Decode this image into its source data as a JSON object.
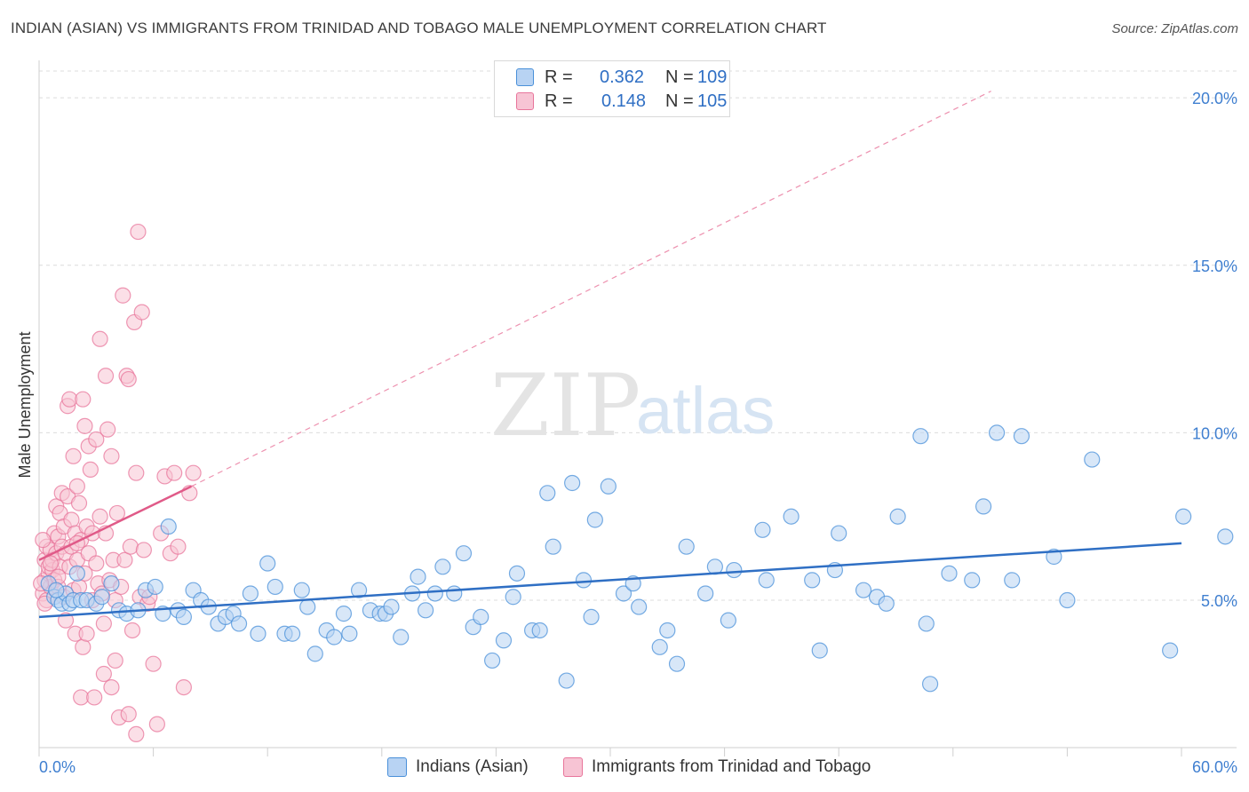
{
  "title": "INDIAN (ASIAN) VS IMMIGRANTS FROM TRINIDAD AND TOBAGO MALE UNEMPLOYMENT CORRELATION CHART",
  "source": "Source: ZipAtlas.com",
  "watermark": {
    "zip": "ZIP",
    "atlas": "atlas"
  },
  "stats": [
    {
      "r_label": "R =",
      "r_value": "0.362",
      "n_label": "N =",
      "n_value": "109",
      "color": "#4a90d9",
      "fill": "#b8d3f3"
    },
    {
      "r_label": "R =",
      "r_value": "0.148",
      "n_label": "N =",
      "n_value": "105",
      "color": "#e8759b",
      "fill": "#f7c4d4"
    }
  ],
  "chart_data": {
    "type": "scatter",
    "xlabel": "",
    "ylabel": "Male Unemployment",
    "xlim": [
      0,
      60
    ],
    "ylim": [
      0.6,
      20.8
    ],
    "x_tick_labels": [
      "0.0%",
      "60.0%"
    ],
    "y_ticks": [
      5,
      10,
      15,
      20
    ],
    "y_tick_labels": [
      "5.0%",
      "10.0%",
      "15.0%",
      "20.0%"
    ],
    "grid": true,
    "legend_position": "bottom",
    "series": [
      {
        "name": "Indians (Asian)",
        "color": "#4a90d9",
        "fill": "#b8d3f3",
        "trend": {
          "x0": 0,
          "y0": 4.5,
          "x1": 60,
          "y1": 6.7
        },
        "points": [
          [
            0.5,
            5.5
          ],
          [
            0.8,
            5.1
          ],
          [
            1.0,
            5.0
          ],
          [
            1.2,
            4.9
          ],
          [
            1.4,
            5.2
          ],
          [
            1.6,
            4.9
          ],
          [
            1.8,
            5.0
          ],
          [
            2.0,
            5.8
          ],
          [
            2.2,
            5.0
          ],
          [
            2.5,
            5.0
          ],
          [
            3.0,
            4.9
          ],
          [
            3.3,
            5.1
          ],
          [
            3.8,
            5.5
          ],
          [
            4.2,
            4.7
          ],
          [
            4.6,
            4.6
          ],
          [
            5.2,
            4.7
          ],
          [
            5.6,
            5.3
          ],
          [
            6.1,
            5.4
          ],
          [
            6.5,
            4.6
          ],
          [
            6.8,
            7.2
          ],
          [
            7.3,
            4.7
          ],
          [
            7.6,
            4.5
          ],
          [
            8.1,
            5.3
          ],
          [
            8.5,
            5.0
          ],
          [
            8.9,
            4.8
          ],
          [
            9.4,
            4.3
          ],
          [
            9.8,
            4.5
          ],
          [
            10.2,
            4.6
          ],
          [
            10.5,
            4.3
          ],
          [
            11.1,
            5.2
          ],
          [
            11.5,
            4.0
          ],
          [
            12.0,
            6.1
          ],
          [
            12.4,
            5.4
          ],
          [
            12.9,
            4.0
          ],
          [
            13.3,
            4.0
          ],
          [
            13.8,
            5.3
          ],
          [
            14.1,
            4.8
          ],
          [
            14.5,
            3.4
          ],
          [
            15.1,
            4.1
          ],
          [
            15.5,
            3.9
          ],
          [
            16.0,
            4.6
          ],
          [
            16.3,
            4.0
          ],
          [
            16.8,
            5.3
          ],
          [
            17.4,
            4.7
          ],
          [
            17.9,
            4.6
          ],
          [
            18.2,
            4.6
          ],
          [
            18.5,
            4.8
          ],
          [
            19.0,
            3.9
          ],
          [
            19.6,
            5.2
          ],
          [
            19.9,
            5.7
          ],
          [
            20.3,
            4.7
          ],
          [
            20.8,
            5.2
          ],
          [
            21.2,
            6.0
          ],
          [
            21.8,
            5.2
          ],
          [
            22.3,
            6.4
          ],
          [
            22.8,
            4.2
          ],
          [
            23.2,
            4.5
          ],
          [
            23.8,
            3.2
          ],
          [
            24.4,
            3.8
          ],
          [
            24.9,
            5.1
          ],
          [
            25.1,
            5.8
          ],
          [
            25.9,
            4.1
          ],
          [
            26.3,
            4.1
          ],
          [
            26.7,
            8.2
          ],
          [
            27.0,
            6.6
          ],
          [
            27.7,
            2.6
          ],
          [
            28.0,
            8.5
          ],
          [
            28.6,
            5.6
          ],
          [
            29.0,
            4.5
          ],
          [
            29.2,
            7.4
          ],
          [
            29.9,
            8.4
          ],
          [
            30.7,
            5.2
          ],
          [
            31.2,
            5.5
          ],
          [
            31.5,
            4.8
          ],
          [
            32.6,
            3.6
          ],
          [
            33.0,
            4.1
          ],
          [
            33.5,
            3.1
          ],
          [
            34.0,
            6.6
          ],
          [
            35.0,
            5.2
          ],
          [
            35.5,
            6.0
          ],
          [
            36.2,
            4.4
          ],
          [
            36.5,
            5.9
          ],
          [
            38.0,
            7.1
          ],
          [
            38.2,
            5.6
          ],
          [
            39.5,
            7.5
          ],
          [
            40.6,
            5.6
          ],
          [
            41.0,
            3.5
          ],
          [
            41.8,
            5.9
          ],
          [
            42.0,
            7.0
          ],
          [
            43.3,
            5.3
          ],
          [
            44.0,
            5.1
          ],
          [
            44.5,
            4.9
          ],
          [
            45.1,
            7.5
          ],
          [
            46.3,
            9.9
          ],
          [
            46.6,
            4.3
          ],
          [
            46.8,
            2.5
          ],
          [
            47.8,
            5.8
          ],
          [
            49.0,
            5.6
          ],
          [
            49.6,
            7.8
          ],
          [
            50.3,
            10.0
          ],
          [
            51.1,
            5.6
          ],
          [
            51.6,
            9.9
          ],
          [
            53.3,
            6.3
          ],
          [
            54.0,
            5.0
          ],
          [
            55.3,
            9.2
          ],
          [
            59.4,
            3.5
          ],
          [
            60.1,
            7.5
          ],
          [
            62.3,
            6.9
          ],
          [
            0.9,
            5.3
          ]
        ]
      },
      {
        "name": "Immigrants from Trinidad and Tobago",
        "color": "#e8759b",
        "fill": "#f7c4d4",
        "trend": {
          "x0": 0,
          "y0": 6.2,
          "x1": 8.0,
          "y1": 8.4
        },
        "trend_dashed": {
          "x0": 8.0,
          "y0": 8.4,
          "x1": 50.0,
          "y1": 20.2
        },
        "points": [
          [
            0.2,
            5.2
          ],
          [
            0.3,
            6.2
          ],
          [
            0.3,
            5.6
          ],
          [
            0.4,
            6.6
          ],
          [
            0.4,
            5.0
          ],
          [
            0.5,
            5.8
          ],
          [
            0.5,
            6.0
          ],
          [
            0.6,
            6.5
          ],
          [
            0.6,
            5.4
          ],
          [
            0.7,
            5.9
          ],
          [
            0.7,
            6.2
          ],
          [
            0.8,
            7.0
          ],
          [
            0.8,
            5.6
          ],
          [
            0.9,
            6.4
          ],
          [
            0.9,
            7.8
          ],
          [
            1.0,
            5.4
          ],
          [
            1.0,
            6.9
          ],
          [
            1.1,
            7.6
          ],
          [
            1.1,
            6.0
          ],
          [
            1.2,
            6.6
          ],
          [
            1.2,
            8.2
          ],
          [
            1.3,
            5.1
          ],
          [
            1.3,
            7.2
          ],
          [
            1.4,
            4.4
          ],
          [
            1.4,
            6.4
          ],
          [
            1.5,
            8.1
          ],
          [
            1.5,
            10.8
          ],
          [
            1.6,
            11.0
          ],
          [
            1.6,
            6.0
          ],
          [
            1.7,
            7.4
          ],
          [
            1.7,
            6.6
          ],
          [
            1.8,
            9.3
          ],
          [
            1.8,
            5.3
          ],
          [
            1.9,
            7.0
          ],
          [
            1.9,
            4.0
          ],
          [
            2.0,
            8.4
          ],
          [
            2.0,
            6.2
          ],
          [
            2.1,
            7.9
          ],
          [
            2.1,
            5.4
          ],
          [
            2.2,
            6.8
          ],
          [
            2.2,
            2.1
          ],
          [
            2.3,
            11.0
          ],
          [
            2.3,
            3.6
          ],
          [
            2.4,
            5.8
          ],
          [
            2.4,
            10.2
          ],
          [
            2.5,
            7.2
          ],
          [
            2.5,
            4.0
          ],
          [
            2.6,
            9.6
          ],
          [
            2.6,
            6.4
          ],
          [
            2.7,
            8.9
          ],
          [
            2.8,
            7.0
          ],
          [
            2.8,
            5.0
          ],
          [
            2.9,
            2.1
          ],
          [
            3.0,
            6.1
          ],
          [
            3.0,
            9.8
          ],
          [
            3.1,
            5.5
          ],
          [
            3.2,
            12.8
          ],
          [
            3.2,
            7.5
          ],
          [
            3.3,
            5.2
          ],
          [
            3.4,
            4.3
          ],
          [
            3.4,
            2.8
          ],
          [
            3.5,
            11.7
          ],
          [
            3.5,
            7.0
          ],
          [
            3.6,
            10.1
          ],
          [
            3.7,
            5.6
          ],
          [
            3.8,
            2.4
          ],
          [
            3.8,
            9.3
          ],
          [
            3.9,
            6.2
          ],
          [
            4.0,
            3.2
          ],
          [
            4.0,
            5.0
          ],
          [
            4.1,
            7.6
          ],
          [
            4.2,
            1.5
          ],
          [
            4.3,
            5.4
          ],
          [
            4.4,
            14.1
          ],
          [
            4.5,
            6.2
          ],
          [
            4.6,
            11.7
          ],
          [
            4.7,
            11.6
          ],
          [
            4.7,
            1.6
          ],
          [
            4.8,
            6.6
          ],
          [
            4.9,
            4.1
          ],
          [
            5.0,
            13.3
          ],
          [
            5.1,
            8.8
          ],
          [
            5.1,
            1.0
          ],
          [
            5.2,
            16.0
          ],
          [
            5.3,
            5.1
          ],
          [
            5.4,
            13.6
          ],
          [
            5.5,
            6.5
          ],
          [
            5.7,
            4.9
          ],
          [
            5.8,
            5.1
          ],
          [
            6.0,
            3.1
          ],
          [
            6.2,
            1.3
          ],
          [
            6.4,
            7.0
          ],
          [
            6.6,
            8.7
          ],
          [
            6.9,
            6.4
          ],
          [
            7.1,
            8.8
          ],
          [
            7.3,
            6.6
          ],
          [
            7.6,
            2.4
          ],
          [
            7.9,
            8.2
          ],
          [
            8.1,
            8.8
          ],
          [
            0.1,
            5.5
          ],
          [
            0.2,
            6.8
          ],
          [
            0.3,
            4.9
          ],
          [
            0.6,
            6.1
          ],
          [
            1.0,
            5.7
          ],
          [
            2.0,
            6.7
          ]
        ]
      }
    ]
  },
  "legend": [
    {
      "label": "Indians (Asian)",
      "color": "#4a90d9",
      "fill": "#b8d3f3"
    },
    {
      "label": "Immigrants from Trinidad and Tobago",
      "color": "#e8759b",
      "fill": "#f7c4d4"
    }
  ]
}
